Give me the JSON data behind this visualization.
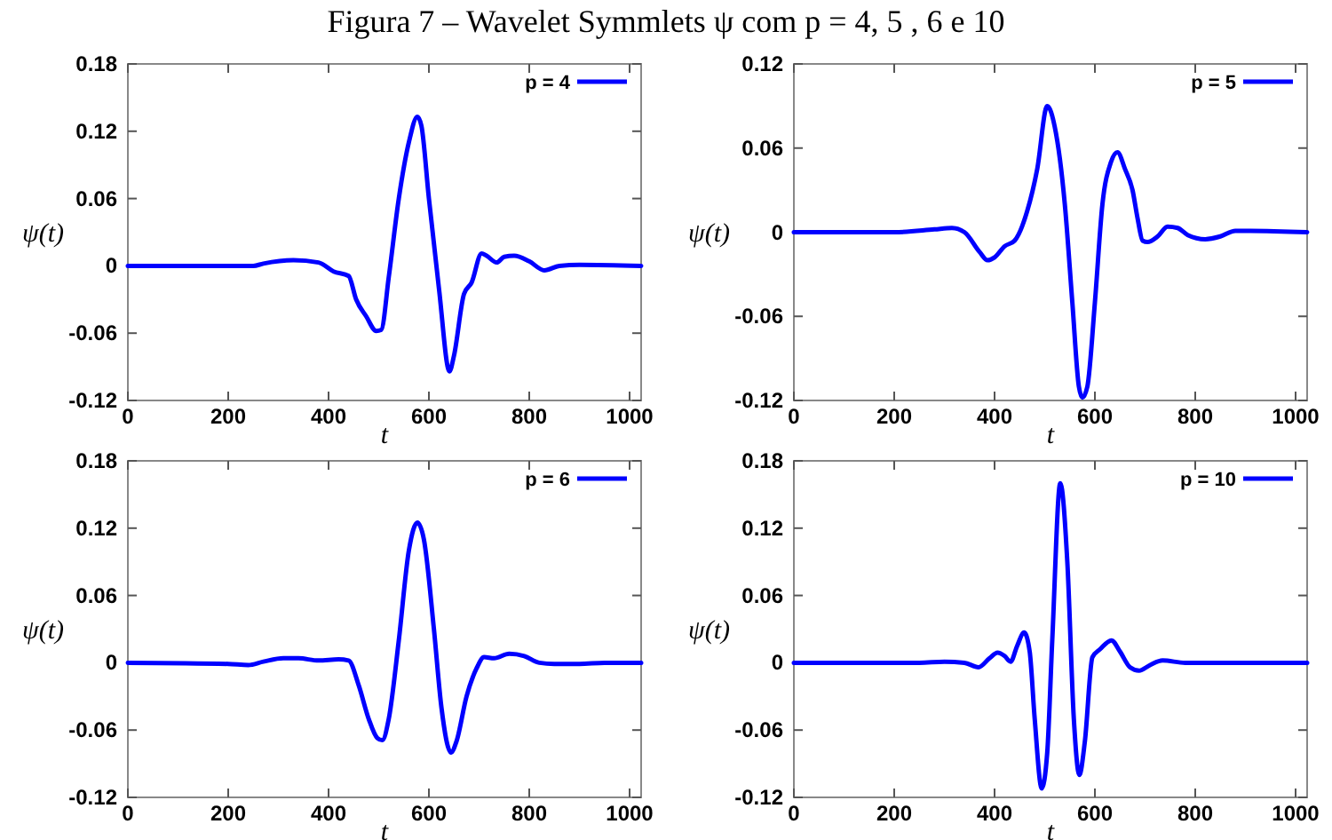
{
  "chart_data": [
    {
      "type": "line",
      "title": "Figura 7 – Wavelet Symmlets ψ com p = 4, 5 , 6 e 10",
      "xlabel": "t",
      "ylabel": "ψ(t)",
      "xlim": [
        0,
        1023
      ],
      "xticks": [
        0,
        200,
        400,
        600,
        800,
        1000
      ],
      "ylim": [
        -0.12,
        0.18
      ],
      "yticks": [
        -0.12,
        -0.06,
        0,
        0.06,
        0.12,
        0.18
      ],
      "legend": "top right",
      "grid": false,
      "series": [
        {
          "name": "p = 4",
          "color": "#0000ff",
          "x": [
            0,
            250,
            270,
            330,
            380,
            410,
            440,
            455,
            475,
            495,
            505,
            520,
            540,
            560,
            577,
            585,
            600,
            620,
            641,
            650,
            670,
            685,
            705,
            715,
            735,
            750,
            770,
            800,
            830,
            860,
            900,
            1023
          ],
          "values": [
            0,
            0,
            0.002,
            0.005,
            0.003,
            -0.005,
            -0.009,
            -0.03,
            -0.045,
            -0.058,
            -0.057,
            -0.01,
            0.06,
            0.11,
            0.133,
            0.125,
            0.06,
            -0.02,
            -0.094,
            -0.08,
            -0.025,
            -0.015,
            0.011,
            0.009,
            0.003,
            0.008,
            0.009,
            0.004,
            -0.004,
            0,
            0.001,
            0
          ]
        }
      ]
    },
    {
      "type": "line",
      "xlabel": "t",
      "ylabel": "ψ(t)",
      "xlim": [
        0,
        1023
      ],
      "xticks": [
        0,
        200,
        400,
        600,
        800,
        1000
      ],
      "ylim": [
        -0.12,
        0.12
      ],
      "yticks": [
        -0.12,
        -0.06,
        0,
        0.06,
        0.12
      ],
      "legend": "top right",
      "grid": false,
      "series": [
        {
          "name": "p = 5",
          "color": "#0000ff",
          "x": [
            0,
            200,
            280,
            315,
            340,
            370,
            386,
            400,
            420,
            440,
            465,
            485,
            505,
            520,
            540,
            555,
            568,
            575,
            585,
            600,
            615,
            632,
            645,
            660,
            675,
            685,
            695,
            705,
            725,
            745,
            765,
            785,
            820,
            850,
            880,
            910,
            1023
          ],
          "values": [
            0,
            0,
            0.002,
            0.003,
            0,
            -0.014,
            -0.02,
            -0.018,
            -0.01,
            -0.006,
            0.015,
            0.045,
            0.09,
            0.075,
            0.02,
            -0.05,
            -0.11,
            -0.118,
            -0.11,
            -0.05,
            0.02,
            0.05,
            0.057,
            0.045,
            0.03,
            0.01,
            -0.006,
            -0.007,
            -0.003,
            0.004,
            0.003,
            -0.002,
            -0.005,
            -0.003,
            0.001,
            0.001,
            0
          ]
        }
      ]
    },
    {
      "type": "line",
      "xlabel": "t",
      "ylabel": "ψ(t)",
      "xlim": [
        0,
        1023
      ],
      "xticks": [
        0,
        200,
        400,
        600,
        800,
        1000
      ],
      "ylim": [
        -0.12,
        0.18
      ],
      "yticks": [
        -0.12,
        -0.06,
        0,
        0.06,
        0.12,
        0.18
      ],
      "legend": "top right",
      "grid": false,
      "series": [
        {
          "name": "p = 6",
          "color": "#0000ff",
          "x": [
            0,
            200,
            240,
            270,
            310,
            340,
            380,
            420,
            440,
            460,
            480,
            497,
            507,
            520,
            540,
            560,
            577,
            590,
            610,
            625,
            644,
            655,
            675,
            695,
            710,
            730,
            760,
            790,
            820,
            850,
            900,
            950,
            1023
          ],
          "values": [
            0,
            -0.001,
            -0.002,
            0.001,
            0.004,
            0.004,
            0.002,
            0.003,
            0.002,
            -0.02,
            -0.05,
            -0.067,
            -0.069,
            -0.05,
            0.02,
            0.1,
            0.125,
            0.11,
            0.03,
            -0.04,
            -0.08,
            -0.07,
            -0.03,
            -0.005,
            0.005,
            0.004,
            0.008,
            0.006,
            0,
            -0.001,
            -0.001,
            0,
            0
          ]
        }
      ]
    },
    {
      "type": "line",
      "xlabel": "t",
      "ylabel": "ψ(t)",
      "xlim": [
        0,
        1023
      ],
      "xticks": [
        0,
        200,
        400,
        600,
        800,
        1000
      ],
      "ylim": [
        -0.12,
        0.18
      ],
      "yticks": [
        -0.12,
        -0.06,
        0,
        0.06,
        0.12,
        0.18
      ],
      "legend": "top right",
      "grid": false,
      "series": [
        {
          "name": "p = 10",
          "color": "#0000ff",
          "x": [
            0,
            250,
            300,
            340,
            368,
            390,
            406,
            420,
            432,
            445,
            459,
            470,
            480,
            494,
            505,
            515,
            531,
            545,
            558,
            569,
            580,
            595,
            610,
            633,
            650,
            670,
            688,
            710,
            735,
            780,
            1023
          ],
          "values": [
            0,
            0,
            0.001,
            0,
            -0.004,
            0.004,
            0.009,
            0.006,
            0.001,
            0.015,
            0.027,
            0.01,
            -0.05,
            -0.112,
            -0.08,
            0.02,
            0.16,
            0.09,
            -0.05,
            -0.1,
            -0.07,
            0.005,
            0.012,
            0.02,
            0.01,
            -0.004,
            -0.007,
            -0.002,
            0.002,
            0,
            0
          ]
        }
      ]
    }
  ]
}
